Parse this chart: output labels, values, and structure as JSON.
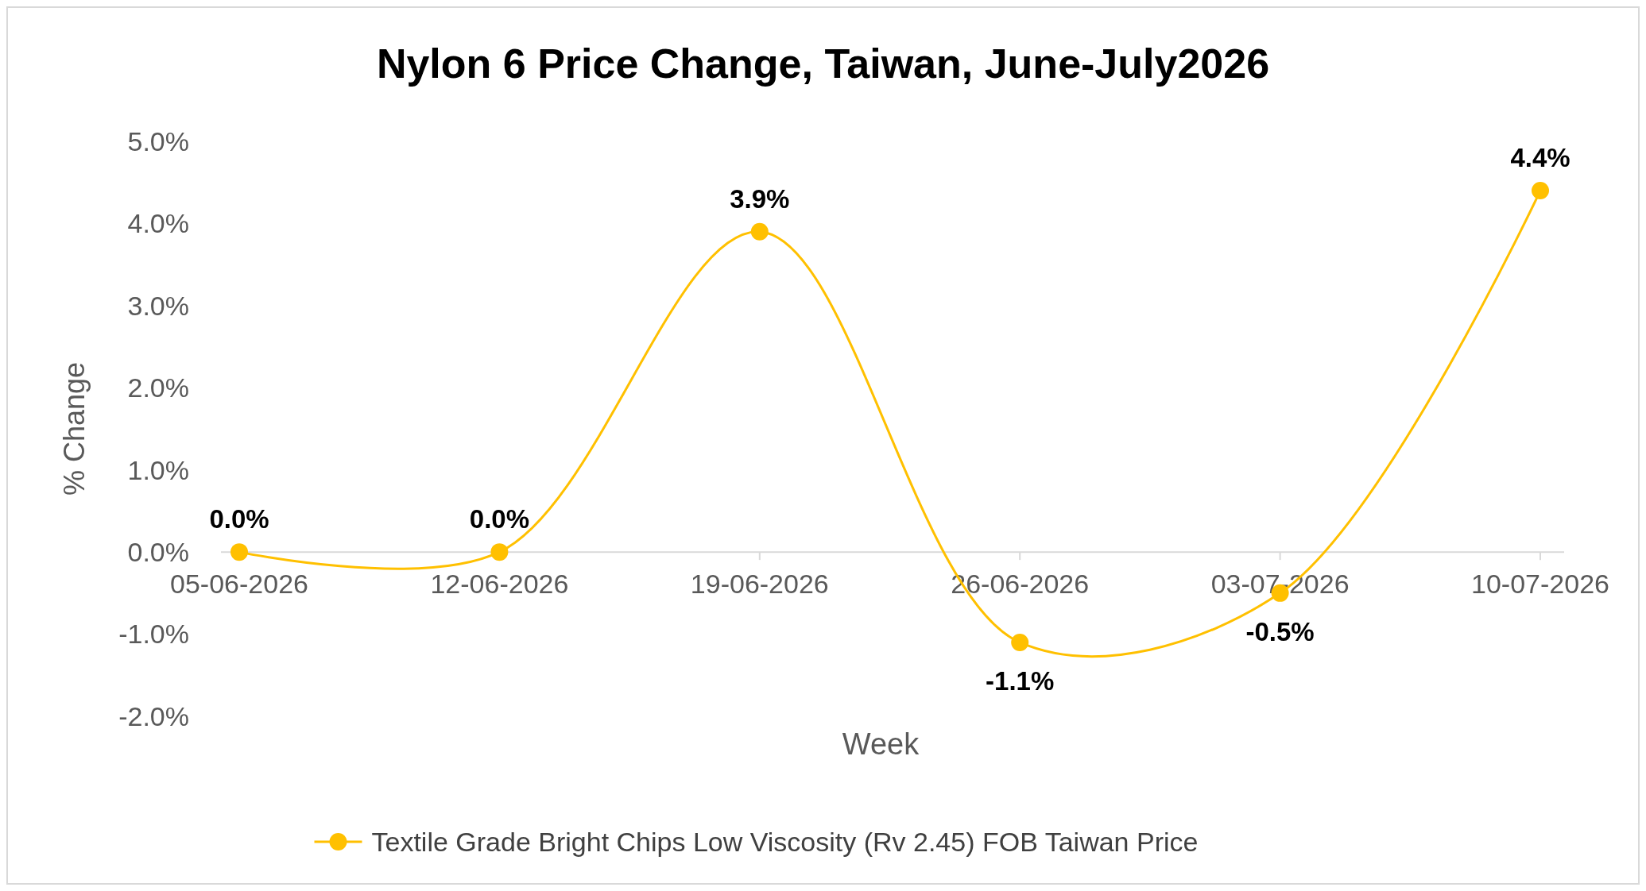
{
  "chart_data": {
    "type": "line",
    "title": "Nylon 6 Price Change, Taiwan, June-July2026",
    "xlabel": "Week",
    "ylabel": "% Change",
    "categories": [
      "05-06-2026",
      "12-06-2026",
      "19-06-2026",
      "26-06-2026",
      "03-07-2026",
      "10-07-2026"
    ],
    "series": [
      {
        "name": "Textile Grade Bright Chips Low Viscosity (Rv 2.45) FOB Taiwan Price",
        "color": "#ffc000",
        "values": [
          0,
          0,
          3.9,
          -1.1,
          -0.5,
          4.4
        ],
        "value_labels": [
          "0.0%",
          "0.0%",
          "3.9%",
          "-1.1%",
          "-0.5%",
          "4.4%"
        ]
      }
    ],
    "ylim": [
      -2,
      5
    ],
    "yticks": [
      {
        "value": -2,
        "label": "-2.0%"
      },
      {
        "value": -1,
        "label": "-1.0%"
      },
      {
        "value": 0,
        "label": "0.0%"
      },
      {
        "value": 1,
        "label": "1.0%"
      },
      {
        "value": 2,
        "label": "2.0%"
      },
      {
        "value": 3,
        "label": "3.0%"
      },
      {
        "value": 4,
        "label": "4.0%"
      },
      {
        "value": 5,
        "label": "5.0%"
      }
    ],
    "marker": "circle",
    "legend": "bottom",
    "grid": false
  }
}
